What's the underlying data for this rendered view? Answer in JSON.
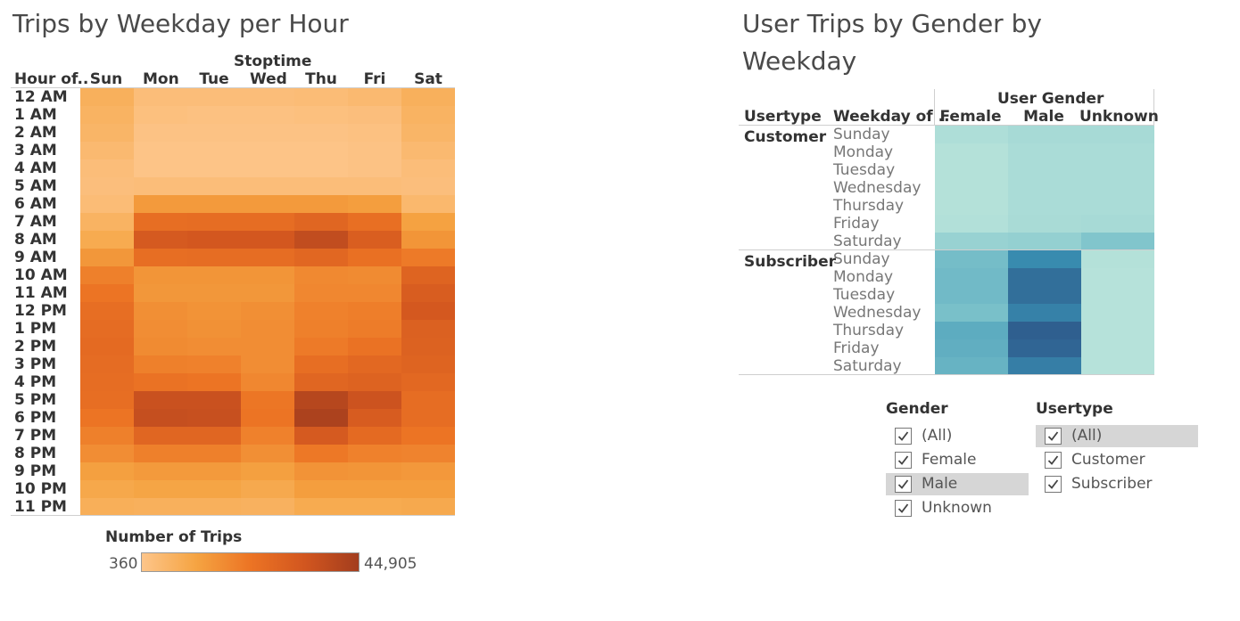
{
  "left": {
    "title": "Trips by Weekday per Hour",
    "column_header": "Stoptime",
    "row_header": "Hour of..",
    "legend_title": "Number of Trips",
    "legend_min": "360",
    "legend_max": "44,905"
  },
  "right": {
    "title_line1": "User Trips by Gender by",
    "title_line2": "Weekday",
    "column_header": "User Gender",
    "row_header_usertype": "Usertype",
    "row_header_weekday": "Weekday of ..",
    "usertypes": [
      "Customer",
      "Subscriber"
    ]
  },
  "filters": {
    "gender": {
      "title": "Gender",
      "items": [
        "(All)",
        "Female",
        "Male",
        "Unknown"
      ],
      "highlighted": "Male"
    },
    "usertype": {
      "title": "Usertype",
      "items": [
        "(All)",
        "Customer",
        "Subscriber"
      ],
      "highlighted": "(All)"
    }
  },
  "colors": {
    "orange_low": "#fdc58a",
    "orange_high": "#a33d1e",
    "teal_low": "#bde6dc",
    "teal_high": "#2f5f8f"
  },
  "chart_data": [
    {
      "type": "heatmap",
      "title": "Trips by Weekday per Hour",
      "x": [
        "Sun",
        "Mon",
        "Tue",
        "Wed",
        "Thu",
        "Fri",
        "Sat"
      ],
      "y": [
        "12 AM",
        "1 AM",
        "2 AM",
        "3 AM",
        "4 AM",
        "5 AM",
        "6 AM",
        "7 AM",
        "8 AM",
        "9 AM",
        "10 AM",
        "11 AM",
        "12 PM",
        "1 PM",
        "2 PM",
        "3 PM",
        "4 PM",
        "5 PM",
        "6 PM",
        "7 PM",
        "8 PM",
        "9 PM",
        "10 PM",
        "11 PM"
      ],
      "values": [
        [
          0.16,
          0.06,
          0.06,
          0.06,
          0.07,
          0.09,
          0.16
        ],
        [
          0.14,
          0.04,
          0.03,
          0.03,
          0.04,
          0.05,
          0.14
        ],
        [
          0.12,
          0.02,
          0.02,
          0.02,
          0.02,
          0.03,
          0.12
        ],
        [
          0.09,
          0.01,
          0.01,
          0.01,
          0.01,
          0.02,
          0.09
        ],
        [
          0.06,
          0.01,
          0.01,
          0.01,
          0.01,
          0.02,
          0.06
        ],
        [
          0.05,
          0.06,
          0.06,
          0.06,
          0.06,
          0.06,
          0.05
        ],
        [
          0.07,
          0.3,
          0.3,
          0.3,
          0.3,
          0.28,
          0.1
        ],
        [
          0.14,
          0.55,
          0.56,
          0.56,
          0.62,
          0.54,
          0.26
        ],
        [
          0.2,
          0.72,
          0.74,
          0.74,
          0.84,
          0.68,
          0.33
        ],
        [
          0.32,
          0.55,
          0.56,
          0.56,
          0.61,
          0.53,
          0.47
        ],
        [
          0.44,
          0.33,
          0.33,
          0.33,
          0.39,
          0.38,
          0.63
        ],
        [
          0.5,
          0.32,
          0.32,
          0.32,
          0.4,
          0.4,
          0.69
        ],
        [
          0.55,
          0.36,
          0.34,
          0.36,
          0.43,
          0.45,
          0.73
        ],
        [
          0.57,
          0.37,
          0.35,
          0.37,
          0.44,
          0.46,
          0.66
        ],
        [
          0.58,
          0.38,
          0.37,
          0.37,
          0.47,
          0.52,
          0.65
        ],
        [
          0.57,
          0.44,
          0.43,
          0.37,
          0.55,
          0.6,
          0.63
        ],
        [
          0.56,
          0.52,
          0.5,
          0.4,
          0.62,
          0.64,
          0.6
        ],
        [
          0.55,
          0.8,
          0.8,
          0.49,
          0.9,
          0.78,
          0.56
        ],
        [
          0.5,
          0.82,
          0.81,
          0.5,
          0.95,
          0.7,
          0.56
        ],
        [
          0.44,
          0.62,
          0.62,
          0.43,
          0.72,
          0.58,
          0.5
        ],
        [
          0.37,
          0.44,
          0.44,
          0.36,
          0.48,
          0.43,
          0.42
        ],
        [
          0.27,
          0.3,
          0.3,
          0.27,
          0.34,
          0.33,
          0.31
        ],
        [
          0.22,
          0.24,
          0.24,
          0.21,
          0.28,
          0.28,
          0.28
        ],
        [
          0.17,
          0.16,
          0.16,
          0.15,
          0.2,
          0.2,
          0.21
        ]
      ],
      "color_label": "Number of Trips",
      "color_range": [
        360,
        44905
      ]
    },
    {
      "type": "heatmap",
      "title": "User Trips by Gender by Weekday",
      "x": [
        "Female",
        "Male",
        "Unknown"
      ],
      "y_groups": [
        "Customer",
        "Subscriber"
      ],
      "y": [
        "Sunday",
        "Monday",
        "Tuesday",
        "Wednesday",
        "Thursday",
        "Friday",
        "Saturday"
      ],
      "values": {
        "Customer": [
          [
            0.08,
            0.12,
            0.12
          ],
          [
            0.05,
            0.1,
            0.1
          ],
          [
            0.05,
            0.1,
            0.1
          ],
          [
            0.05,
            0.1,
            0.1
          ],
          [
            0.05,
            0.1,
            0.1
          ],
          [
            0.06,
            0.11,
            0.12
          ],
          [
            0.2,
            0.22,
            0.32
          ]
        ],
        "Subscriber": [
          [
            0.38,
            0.72,
            0.05
          ],
          [
            0.4,
            0.9,
            0.04
          ],
          [
            0.4,
            0.9,
            0.04
          ],
          [
            0.36,
            0.78,
            0.04
          ],
          [
            0.5,
            1.0,
            0.04
          ],
          [
            0.48,
            0.96,
            0.04
          ],
          [
            0.45,
            0.8,
            0.04
          ]
        ]
      }
    }
  ]
}
